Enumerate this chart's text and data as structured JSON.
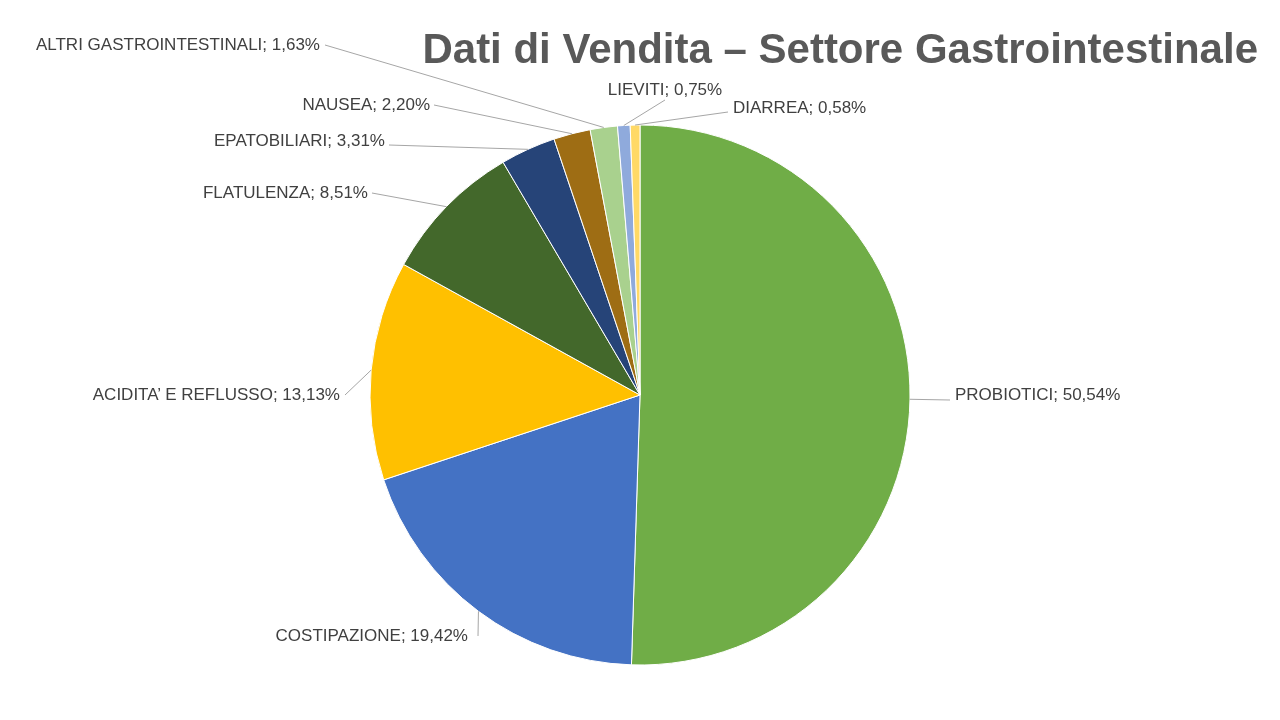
{
  "chart_data": {
    "type": "pie",
    "title": "Dati di Vendita – Settore Gastrointestinale",
    "categories": [
      "PROBIOTICI",
      "COSTIPAZIONE",
      "ACIDITA’ E REFLUSSO",
      "FLATULENZA",
      "EPATOBILIARI",
      "NAUSEA",
      "ALTRI GASTROINTESTINALI",
      "LIEVITI",
      "DIARREA"
    ],
    "values": [
      50.54,
      19.42,
      13.13,
      8.51,
      3.31,
      2.2,
      1.63,
      0.75,
      0.58
    ],
    "value_labels": [
      "50,54%",
      "19,42%",
      "13,13%",
      "8,51%",
      "3,31%",
      "2,20%",
      "1,63%",
      "0,75%",
      "0,58%"
    ],
    "colors": [
      "#70ad47",
      "#4472c4",
      "#ffc000",
      "#43682b",
      "#264478",
      "#9e6d14",
      "#a9d18e",
      "#8faadc",
      "#ffd966"
    ]
  }
}
